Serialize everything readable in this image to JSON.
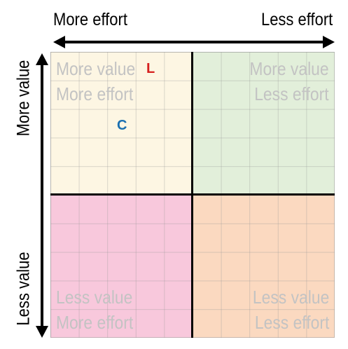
{
  "axes": {
    "top_left_label": "More effort",
    "top_right_label": "Less effort",
    "left_top_label": "More value",
    "left_bottom_label": "Less value",
    "line_color": "#000000"
  },
  "quadrants": {
    "top_left": {
      "line1": "More value",
      "line2": "More effort",
      "color": "#fdf6e3"
    },
    "top_right": {
      "line1": "More value",
      "line2": "Less effort",
      "color": "#e2efda"
    },
    "bottom_left": {
      "line1": "Less value",
      "line2": "More effort",
      "color": "#f8c8dc"
    },
    "bottom_right": {
      "line1": "Less value",
      "line2": "Less effort",
      "color": "#fbd9c0"
    }
  },
  "markers": {
    "l": {
      "text": "L",
      "color": "#d6201f"
    },
    "c": {
      "text": "C",
      "color": "#1a6fb0"
    }
  }
}
